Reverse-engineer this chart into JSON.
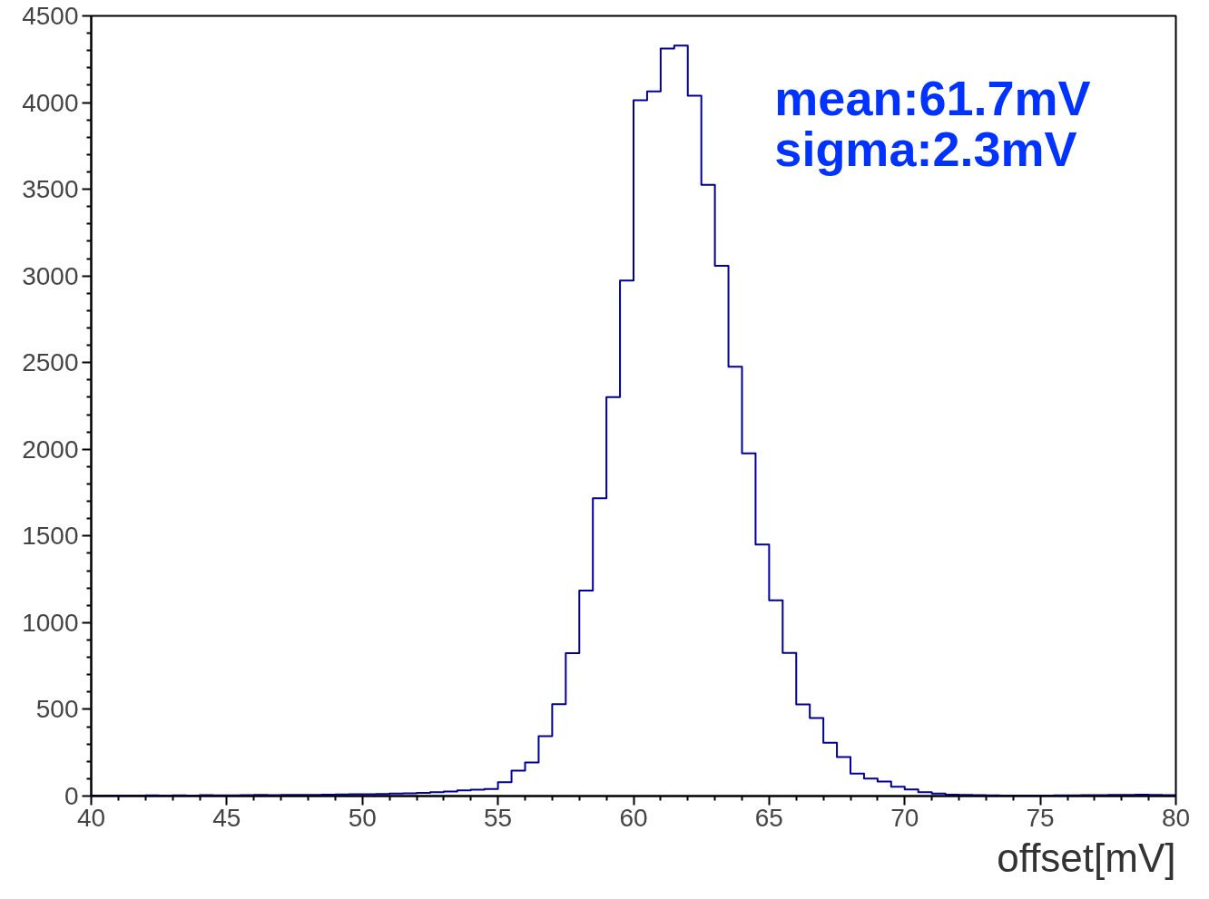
{
  "chart_data": {
    "type": "histogram",
    "xlabel": "offset[mV]",
    "bins": [
      40,
      40.5,
      41,
      41.5,
      42,
      42.5,
      43,
      43.5,
      44,
      44.5,
      45,
      45.5,
      46,
      46.5,
      47,
      47.5,
      48,
      48.5,
      49,
      49.5,
      50,
      50.5,
      51,
      51.5,
      52,
      52.5,
      53,
      53.5,
      54,
      54.5,
      55,
      55.5,
      56,
      56.5,
      57,
      57.5,
      58,
      58.5,
      59,
      59.5,
      60,
      60.5,
      61,
      61.5,
      62,
      62.5,
      63,
      63.5,
      64,
      64.5,
      65,
      65.5,
      66,
      66.5,
      67,
      67.5,
      68,
      68.5,
      69,
      69.5,
      70,
      70.5,
      71,
      71.5,
      72,
      72.5,
      73,
      73.5,
      74,
      74.5,
      75,
      75.5,
      76,
      76.5,
      77,
      77.5,
      78,
      78.5,
      79,
      79.5,
      80
    ],
    "values": [
      2,
      3,
      2,
      3,
      4,
      3,
      4,
      3,
      5,
      4,
      4,
      5,
      6,
      5,
      6,
      7,
      6,
      8,
      9,
      10,
      11,
      12,
      14,
      16,
      18,
      22,
      26,
      33,
      36,
      40,
      80,
      146,
      193,
      345,
      530,
      824,
      1185,
      1718,
      2301,
      2974,
      4014,
      4065,
      4312,
      4328,
      4039,
      3526,
      3059,
      2476,
      1977,
      1451,
      1129,
      826,
      528,
      450,
      308,
      225,
      129,
      101,
      84,
      54,
      38,
      22,
      14,
      8,
      6,
      5,
      4,
      3,
      3,
      3,
      3,
      4,
      4,
      5,
      5,
      6,
      7,
      8,
      7,
      5
    ],
    "color": "#000099",
    "xlim": [
      40,
      80
    ],
    "xticks": [
      40,
      45,
      50,
      55,
      60,
      65,
      70,
      75,
      80
    ],
    "ylim": [
      0,
      4500
    ],
    "yticks": [
      0,
      500,
      1000,
      1500,
      2000,
      2500,
      3000,
      3500,
      4000,
      4500
    ],
    "grid": false,
    "annotations": [
      "mean:61.7mV",
      "sigma:2.3mV"
    ]
  }
}
